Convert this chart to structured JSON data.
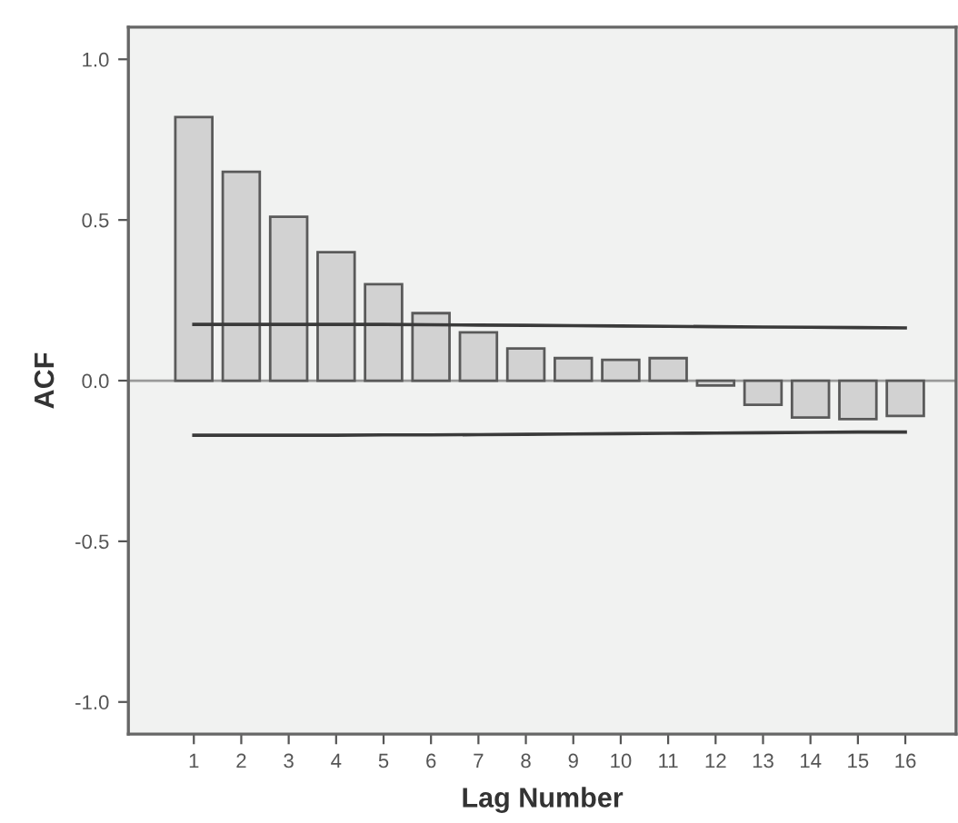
{
  "chart_data": {
    "type": "bar",
    "xlabel": "Lag Number",
    "ylabel": "ACF",
    "categories": [
      "1",
      "2",
      "3",
      "4",
      "5",
      "6",
      "7",
      "8",
      "9",
      "10",
      "11",
      "12",
      "13",
      "14",
      "15",
      "16"
    ],
    "series": [
      {
        "color": "#d2d2d2",
        "values": [
          0.82,
          0.65,
          0.51,
          0.4,
          0.3,
          0.21,
          0.15,
          0.1,
          0.07,
          0.065,
          0.07,
          -0.015,
          -0.075,
          -0.115,
          -0.12,
          -0.11
        ]
      },
      {
        "type": "line",
        "color": "#3a3a3a",
        "values": [
          0.175,
          0.175,
          0.175,
          0.175,
          0.175,
          0.174,
          0.173,
          0.172,
          0.171,
          0.17,
          0.169,
          0.168,
          0.167,
          0.166,
          0.165,
          0.164
        ]
      },
      {
        "type": "line",
        "color": "#3a3a3a",
        "values": [
          -0.17,
          -0.17,
          -0.17,
          -0.17,
          -0.169,
          -0.169,
          -0.168,
          -0.167,
          -0.166,
          -0.165,
          -0.164,
          -0.163,
          -0.162,
          -0.161,
          -0.16,
          -0.16
        ]
      }
    ],
    "ylim": [
      -1.1,
      1.1
    ],
    "yticks": [
      {
        "value": -1.0,
        "label": "-1.0"
      },
      {
        "value": -0.5,
        "label": "-0.5"
      },
      {
        "value": 0.0,
        "label": "0.0"
      },
      {
        "value": 0.5,
        "label": "0.5"
      },
      {
        "value": 1.0,
        "label": "1.0"
      }
    ],
    "ref_lines": [
      {
        "axis": "y",
        "value": 0,
        "color": "#9a9a9a"
      }
    ],
    "grid": false,
    "legend": false
  }
}
